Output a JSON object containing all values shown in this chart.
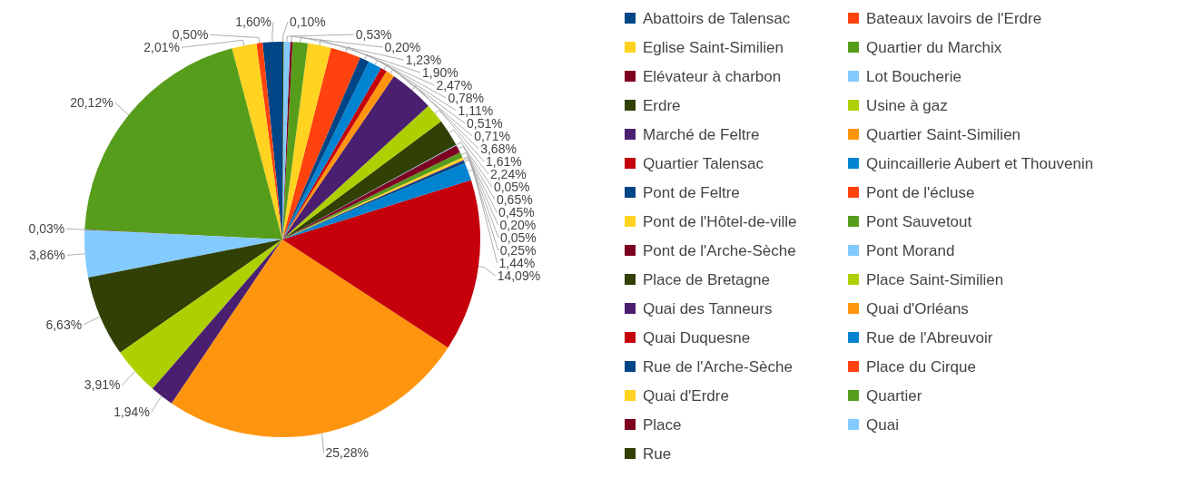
{
  "chart_data": {
    "type": "pie",
    "legend": "right",
    "categories": [
      "Abattoirs de Talensac",
      "Bateaux lavoirs de l'Erdre",
      "Eglise Saint-Similien",
      "Quartier du Marchix",
      "Elévateur à charbon",
      "Lot Boucherie",
      "Erdre",
      "Usine à gaz",
      "Marché de Feltre",
      "Quartier Saint-Similien",
      "Quartier Talensac",
      "Quincaillerie Aubert et Thouvenin",
      "Pont de Feltre",
      "Pont de l'écluse",
      "Pont de l'Hôtel-de-ville",
      "Pont Sauvetout",
      "Pont de l'Arche-Sèche",
      "Pont Morand",
      "Place de Bretagne",
      "Place Saint-Similien",
      "Quai des Tanneurs",
      "Quai d'Orléans",
      "Quai Duquesne",
      "Rue de l'Abreuvoir",
      "Rue de l'Arche-Sèche",
      "Place du Cirque",
      "Quai d'Erdre",
      "Quartier",
      "Place",
      "Quai",
      "Rue"
    ],
    "values": [
      1.6,
      0.5,
      2.01,
      20.12,
      0.03,
      3.86,
      6.63,
      3.91,
      1.94,
      25.28,
      14.09,
      1.44,
      0.25,
      0.05,
      0.2,
      0.45,
      0.65,
      0.05,
      2.24,
      1.61,
      3.68,
      0.71,
      0.51,
      1.11,
      0.78,
      2.47,
      1.9,
      1.23,
      0.2,
      0.53,
      0.1
    ],
    "value_labels": [
      "1,60%",
      "0,50%",
      "2,01%",
      "20,12%",
      "0,03%",
      "3,86%",
      "6,63%",
      "3,91%",
      "1,94%",
      "25,28%",
      "14,09%",
      "1,44%",
      "0,25%",
      "0,05%",
      "0,20%",
      "0,45%",
      "0,65%",
      "0,05%",
      "2,24%",
      "1,61%",
      "3,68%",
      "0,71%",
      "0,51%",
      "1,11%",
      "0,78%",
      "2,47%",
      "1,90%",
      "1,23%",
      "0,20%",
      "0,53%",
      "0,10%"
    ],
    "colors": [
      "#004586",
      "#ff420e",
      "#ffd320",
      "#579d1c",
      "#7e0021",
      "#83caff",
      "#314004",
      "#aecf00",
      "#4b1f6f",
      "#ff950e",
      "#c5000b",
      "#0084d1",
      "#004586",
      "#ff420e",
      "#ffd320",
      "#579d1c",
      "#7e0021",
      "#83caff",
      "#314004",
      "#aecf00",
      "#4b1f6f",
      "#ff950e",
      "#c5000b",
      "#0084d1",
      "#004586",
      "#ff420e",
      "#ffd320",
      "#579d1c",
      "#7e0021",
      "#83caff",
      "#314004"
    ]
  }
}
